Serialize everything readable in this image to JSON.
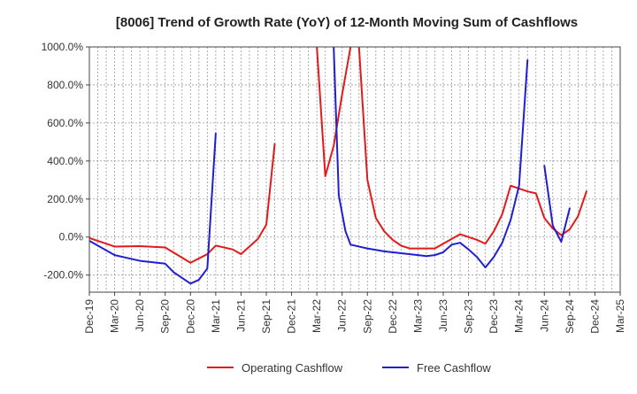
{
  "chart_data": {
    "type": "line",
    "title": "[8006]  Trend of Growth Rate (YoY) of 12-Month Moving Sum of Cashflows",
    "xlabel": "",
    "ylabel": "",
    "ylim": [
      -290,
      1000
    ],
    "yticks": [
      -200,
      0,
      200,
      400,
      600,
      800,
      1000
    ],
    "ytick_labels": [
      "-200.0%",
      "0.0%",
      "200.0%",
      "400.0%",
      "600.0%",
      "800.0%",
      "1000.0%"
    ],
    "x_start": "Dec-19",
    "x_end": "Mar-25",
    "xtick_labels": [
      "Dec-19",
      "Mar-20",
      "Jun-20",
      "Sep-20",
      "Dec-20",
      "Mar-21",
      "Jun-21",
      "Sep-21",
      "Dec-21",
      "Mar-22",
      "Jun-22",
      "Sep-22",
      "Dec-22",
      "Mar-23",
      "Jun-23",
      "Sep-23",
      "Dec-23",
      "Mar-24",
      "Jun-24",
      "Sep-24",
      "Dec-24",
      "Mar-25"
    ],
    "grid": true,
    "legend_position": "bottom",
    "series": [
      {
        "name": "Operating Cashflow",
        "color": "#e31a1c",
        "values": [
          [
            0,
            -5
          ],
          [
            3,
            -50
          ],
          [
            6,
            -48
          ],
          [
            9,
            -55
          ],
          [
            12,
            -135
          ],
          [
            14,
            -90
          ],
          [
            15,
            -45
          ],
          [
            17,
            -65
          ],
          [
            18,
            -90
          ],
          [
            20,
            -10
          ],
          [
            21,
            65
          ],
          [
            22,
            490
          ],
          null,
          [
            27,
            1000
          ],
          [
            28,
            320
          ],
          [
            29,
            480
          ],
          [
            30,
            750
          ],
          [
            31,
            1000
          ],
          null,
          [
            32,
            1000
          ],
          [
            33,
            300
          ],
          [
            34,
            100
          ],
          [
            35,
            30
          ],
          [
            36,
            -15
          ],
          [
            37,
            -45
          ],
          [
            38,
            -60
          ],
          [
            39,
            -60
          ],
          [
            40,
            -60
          ],
          [
            41,
            -60
          ],
          [
            42,
            -35
          ],
          [
            43,
            -10
          ],
          [
            44,
            15
          ],
          [
            45,
            0
          ],
          [
            46,
            -15
          ],
          [
            47,
            -35
          ],
          [
            48,
            30
          ],
          [
            49,
            120
          ],
          [
            50,
            270
          ],
          [
            51,
            255
          ],
          [
            52,
            240
          ],
          [
            53,
            230
          ],
          [
            54,
            100
          ],
          [
            55,
            45
          ],
          [
            56,
            10
          ],
          [
            57,
            40
          ],
          [
            58,
            110
          ],
          [
            59,
            240
          ]
        ]
      },
      {
        "name": "Free Cashflow",
        "color": "#1f1fd1",
        "values": [
          [
            0,
            -20
          ],
          [
            3,
            -95
          ],
          [
            5,
            -115
          ],
          [
            6,
            -125
          ],
          [
            9,
            -140
          ],
          [
            10,
            -185
          ],
          [
            12,
            -245
          ],
          [
            13,
            -225
          ],
          [
            14,
            -165
          ],
          [
            15,
            545
          ],
          null,
          [
            29,
            1000
          ],
          [
            29.6,
            220
          ],
          [
            30.4,
            30
          ],
          [
            31,
            -40
          ],
          [
            33,
            -60
          ],
          [
            35,
            -75
          ],
          [
            37,
            -85
          ],
          [
            39,
            -95
          ],
          [
            40,
            -100
          ],
          [
            41,
            -95
          ],
          [
            42,
            -80
          ],
          [
            43,
            -40
          ],
          [
            44,
            -30
          ],
          [
            45,
            -65
          ],
          [
            46,
            -105
          ],
          [
            47,
            -160
          ],
          [
            48,
            -105
          ],
          [
            49,
            -30
          ],
          [
            50,
            90
          ],
          [
            51,
            270
          ],
          [
            52,
            930
          ],
          null,
          [
            54,
            375
          ],
          [
            55,
            60
          ],
          [
            56,
            -25
          ],
          [
            57,
            150
          ]
        ]
      }
    ]
  }
}
